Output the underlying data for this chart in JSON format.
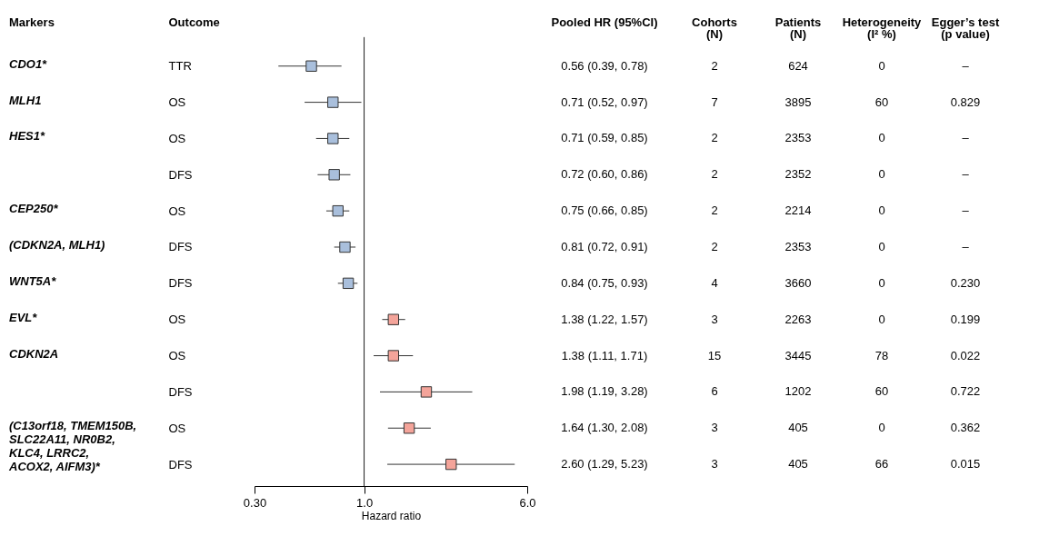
{
  "chart_data": [
    {
      "type": "other",
      "title": "Markers",
      "annotations": [
        "CDO1*",
        "MLH1",
        "HES1*",
        null,
        "CEP250*",
        "(CDKN2A, MLH1)",
        "WNT5A*",
        "EVL*",
        "CDKN2A",
        null,
        "(C13orf18, TMEM150B,\nSLC22A11, NR0B2,\nKLC4, LRRC2,\nACOX2, AIFM3)*",
        null
      ]
    },
    {
      "type": "scatter",
      "ylabel": "Outcome",
      "xlabel": "Hazard ratio",
      "log": "x",
      "categories": [
        "TTR",
        "OS",
        "OS",
        "DFS",
        "OS",
        "DFS",
        "DFS",
        "OS",
        "OS",
        "DFS",
        "OS",
        "DFS"
      ],
      "values": [
        0.56,
        0.71,
        0.71,
        0.72,
        0.75,
        0.81,
        0.84,
        1.38,
        1.38,
        1.98,
        1.64,
        2.6
      ],
      "errors": [
        [
          0.39,
          0.78
        ],
        [
          0.52,
          0.97
        ],
        [
          0.59,
          0.85
        ],
        [
          0.6,
          0.86
        ],
        [
          0.66,
          0.85
        ],
        [
          0.72,
          0.91
        ],
        [
          0.75,
          0.93
        ],
        [
          1.22,
          1.57
        ],
        [
          1.11,
          1.71
        ],
        [
          1.19,
          3.28
        ],
        [
          1.3,
          2.08
        ],
        [
          1.29,
          5.23
        ]
      ],
      "colors": [
        "#a9bfdc",
        "#a9bfdc",
        "#a9bfdc",
        "#a9bfdc",
        "#a9bfdc",
        "#a9bfdc",
        "#a9bfdc",
        "#f4a49a",
        "#f4a49a",
        "#f4a49a",
        "#f4a49a",
        "#f4a49a"
      ],
      "marker": "square",
      "orientation": "horizontal",
      "value_labels": [
        "0.56 (0.39, 0.78)",
        "0.71 (0.52, 0.97)",
        "0.71 (0.59, 0.85)",
        "0.72 (0.60, 0.86)",
        "0.75 (0.66, 0.85)",
        "0.81 (0.72, 0.91)",
        "0.84 (0.75, 0.93)",
        "1.38 (1.22, 1.57)",
        "1.38 (1.11, 1.71)",
        "1.98 (1.19, 3.28)",
        "1.64 (1.30, 2.08)",
        "2.60 (1.29, 5.23)"
      ],
      "annotations": [
        "Pooled HR (95%CI)"
      ],
      "xlim": [
        0.3,
        6.0
      ],
      "xticks": [
        {
          "value": 0.3,
          "label": "0.30"
        },
        {
          "value": 1.0,
          "label": "1.0"
        },
        {
          "value": 6.0,
          "label": "6.0"
        }
      ],
      "ref_lines": [
        {
          "axis": "x",
          "value": 1.0,
          "color": "#000000"
        }
      ],
      "grid": false,
      "legend": false
    },
    {
      "type": "other",
      "title": "Cohorts\n(N)",
      "annotations": [
        "2",
        "7",
        "2",
        "2",
        "2",
        "2",
        "4",
        "3",
        "15",
        "6",
        "3",
        "3"
      ]
    },
    {
      "type": "other",
      "title": "Patients\n(N)",
      "annotations": [
        "624",
        "3895",
        "2353",
        "2352",
        "2214",
        "2353",
        "3660",
        "2263",
        "3445",
        "1202",
        "405",
        "405"
      ]
    },
    {
      "type": "other",
      "title": "Heterogeneity\n(I² %)",
      "annotations": [
        "0",
        "60",
        "0",
        "0",
        "0",
        "0",
        "0",
        "0",
        "78",
        "60",
        "0",
        "66"
      ]
    },
    {
      "type": "other",
      "title": "Egger’s test\n(p value)",
      "annotations": [
        "–",
        "0.829",
        "–",
        "–",
        "–",
        "–",
        "0.230",
        "0.199",
        "0.022",
        "0.722",
        "0.362",
        "0.015"
      ]
    }
  ]
}
